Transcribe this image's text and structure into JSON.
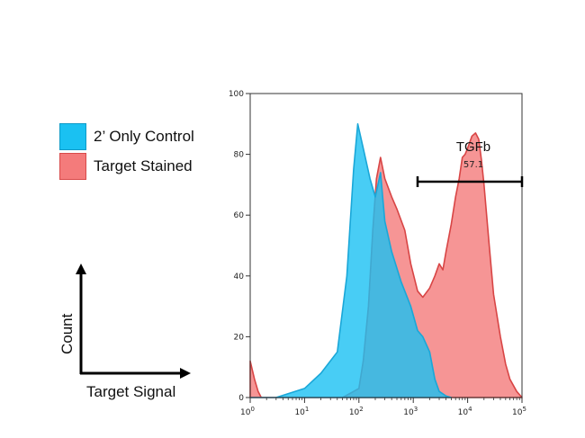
{
  "legend": {
    "items": [
      {
        "label": "2’ Only Control",
        "color": "#1AC1F2",
        "border": "#0E9BC8"
      },
      {
        "label": "Target Stained",
        "color": "#F47B7B",
        "border": "#D84A4A"
      }
    ]
  },
  "axes_key": {
    "x_label": "Target Signal",
    "y_label": "Count"
  },
  "chart_data": {
    "type": "area",
    "xscale": "log",
    "xlim": [
      1,
      100000
    ],
    "ylim": [
      0,
      100
    ],
    "y_ticks": [
      0,
      20,
      40,
      60,
      80,
      100
    ],
    "x_ticks": [
      "10^0",
      "10^1",
      "10^2",
      "10^3",
      "10^4",
      "10^5"
    ],
    "series": [
      {
        "name": "2’ Only Control",
        "fill": "#1AC1F2",
        "stroke": "#1AA7D8",
        "fill_opacity": 0.8,
        "x": [
          1,
          3,
          10,
          20,
          40,
          60,
          80,
          95,
          120,
          160,
          200,
          250,
          300,
          400,
          600,
          900,
          1200,
          1500,
          2000,
          2500,
          3000,
          4000,
          5000
        ],
        "y": [
          0,
          0,
          3,
          8,
          15,
          40,
          75,
          90,
          82,
          72,
          66,
          74,
          58,
          48,
          38,
          30,
          22,
          20,
          15,
          6,
          2,
          0.5,
          0
        ]
      },
      {
        "name": "Target Stained",
        "fill": "#F47B7B",
        "stroke": "#D84545",
        "fill_opacity": 0.8,
        "x": [
          1,
          1.2,
          1.4,
          1.6,
          2,
          10,
          50,
          100,
          120,
          150,
          180,
          210,
          250,
          300,
          400,
          500,
          700,
          900,
          1200,
          1500,
          2000,
          2500,
          3000,
          3500,
          4000,
          5000,
          6000,
          7000,
          8000,
          9000,
          10000,
          12000,
          14000,
          16000,
          18000,
          20000,
          25000,
          30000,
          40000,
          50000,
          60000,
          80000,
          100000
        ],
        "y": [
          12,
          6,
          2,
          0,
          0,
          0,
          0,
          3,
          12,
          30,
          55,
          72,
          79,
          72,
          66,
          62,
          55,
          44,
          35,
          33,
          36,
          40,
          44,
          42,
          48,
          57,
          66,
          72,
          79,
          80,
          82,
          86,
          87,
          85,
          78,
          70,
          50,
          34,
          20,
          11,
          6,
          2,
          0
        ]
      }
    ],
    "gate": {
      "label": "TGFb",
      "value": "57.1",
      "x_range": [
        1200,
        100000
      ],
      "y": 71
    }
  }
}
